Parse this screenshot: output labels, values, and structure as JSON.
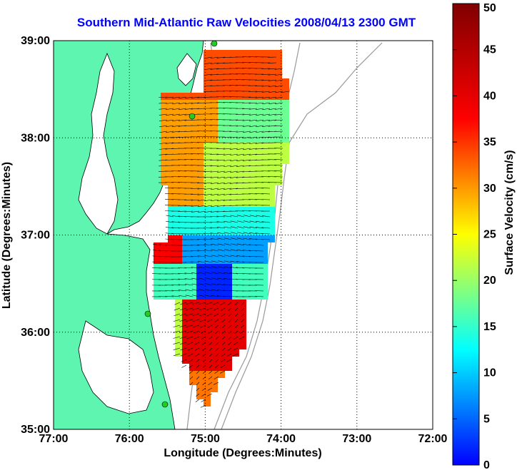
{
  "title": "Southern Mid-Atlantic Raw Velocities 2008/04/13 2300 GMT",
  "map": {
    "xlabel": "Longitude (Degrees:Minutes)",
    "ylabel": "Latitude (Degrees:Minutes)",
    "lon_ticks": [
      "77:00",
      "76:00",
      "75:00",
      "74:00",
      "73:00",
      "72:00"
    ],
    "lat_ticks": [
      "39:00",
      "38:00",
      "37:00",
      "36:00",
      "35:00"
    ],
    "lon_range": [
      -77,
      -72
    ],
    "lat_range": [
      35,
      39
    ],
    "grid": true,
    "land_color": "#5ef5b0",
    "colors": {
      "title": "#0000ff",
      "station": "#22cc22",
      "vector": "#000000",
      "bathymetry": "#999999"
    }
  },
  "colorbar": {
    "label": "Surface Velocity (cm/s)",
    "ticks": [
      "0",
      "5",
      "10",
      "15",
      "20",
      "25",
      "30",
      "35",
      "40",
      "45",
      "50"
    ],
    "min": 0,
    "max": 50,
    "colormap": "jet"
  }
}
